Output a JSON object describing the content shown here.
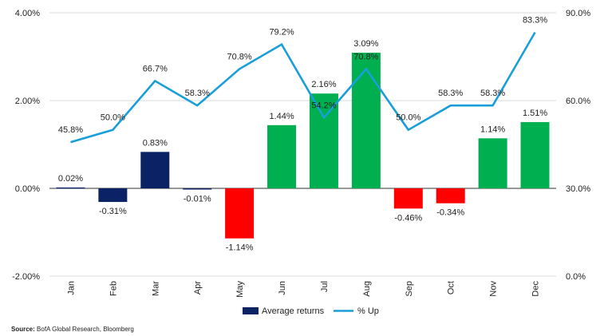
{
  "chart_data": {
    "type": "bar",
    "categories": [
      "Jan",
      "Feb",
      "Mar",
      "Apr",
      "May",
      "Jun",
      "Jul",
      "Aug",
      "Sep",
      "Oct",
      "Nov",
      "Dec"
    ],
    "series": [
      {
        "name": "Average returns",
        "axis": "left",
        "values": [
          0.02,
          -0.31,
          0.83,
          -0.01,
          -1.14,
          1.44,
          2.16,
          3.09,
          -0.46,
          -0.34,
          1.14,
          1.51
        ],
        "labels": [
          "0.02%",
          "-0.31%",
          "0.83%",
          "-0.01%",
          "-1.14%",
          "1.44%",
          "2.16%",
          "3.09%",
          "-0.46%",
          "-0.34%",
          "1.14%",
          "1.51%"
        ],
        "colors": [
          "#0b2265",
          "#0b2265",
          "#0b2265",
          "#0b2265",
          "#ff0000",
          "#00b050",
          "#00b050",
          "#00b050",
          "#ff0000",
          "#ff0000",
          "#00b050",
          "#00b050"
        ]
      },
      {
        "name": "% Up",
        "axis": "right",
        "type": "line",
        "values": [
          45.8,
          50.0,
          66.7,
          58.3,
          70.8,
          79.2,
          54.2,
          70.8,
          50.0,
          58.3,
          58.3,
          83.3
        ],
        "labels": [
          "45.8%",
          "50.0%",
          "66.7%",
          "58.3%",
          "70.8%",
          "79.2%",
          "54.2%",
          "70.8%",
          "50.0%",
          "58.3%",
          "58.3%",
          "83.3%"
        ],
        "color": "#1a9ed9"
      }
    ],
    "left_axis": {
      "range": [
        -2.0,
        4.0
      ],
      "ticks": [
        -2.0,
        0.0,
        2.0,
        4.0
      ],
      "tick_labels": [
        "-2.00%",
        "0.00%",
        "2.00%",
        "4.00%"
      ]
    },
    "right_axis": {
      "range": [
        0.0,
        90.0
      ],
      "ticks": [
        0.0,
        30.0,
        60.0,
        90.0
      ],
      "tick_labels": [
        "0.0%",
        "30.0%",
        "60.0%",
        "90.0%"
      ]
    },
    "grid": true,
    "legend": {
      "position": "bottom",
      "items": [
        {
          "label": "Average returns",
          "kind": "box",
          "color": "#0b2265"
        },
        {
          "label": "% Up",
          "kind": "line",
          "color": "#1a9ed9"
        }
      ]
    }
  },
  "source": {
    "prefix": "Source:",
    "text": "BofA Global Research, Bloomberg"
  },
  "colors": {
    "grid": "#d9d9d9",
    "axis": "#333333"
  }
}
